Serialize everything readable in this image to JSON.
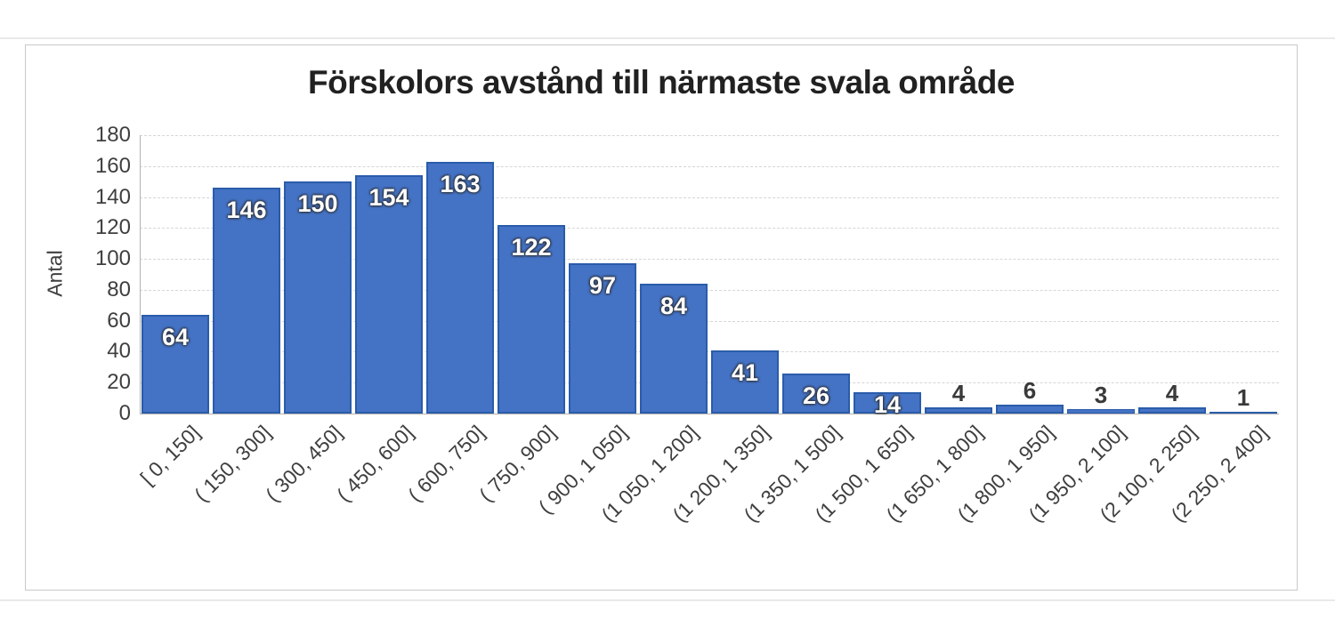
{
  "chart_data": {
    "type": "bar",
    "title": "Förskolors avstånd till närmaste svala område",
    "ylabel": "Antal",
    "xlabel": "",
    "ylim": [
      0,
      180
    ],
    "yticks": [
      0,
      20,
      40,
      60,
      80,
      100,
      120,
      140,
      160,
      180
    ],
    "grid": true,
    "legend_position": "none",
    "categories": [
      "[ 0, 150]",
      "( 150, 300]",
      "( 300, 450]",
      "( 450, 600]",
      "( 600, 750]",
      "( 750, 900]",
      "( 900, 1 050]",
      "(1 050, 1 200]",
      "(1 200, 1 350]",
      "(1 350, 1 500]",
      "(1 500, 1 650]",
      "(1 650, 1 800]",
      "(1 800, 1 950]",
      "(1 950, 2 100]",
      "(2 100, 2 250]",
      "(2 250, 2 400]"
    ],
    "values": [
      64,
      146,
      150,
      154,
      163,
      122,
      97,
      84,
      41,
      26,
      14,
      4,
      6,
      3,
      4,
      1
    ],
    "colors": {
      "bar_fill": "#4472C4",
      "bar_border": "#2A5CAA",
      "grid_line": "#D6D6D6",
      "axis_line": "#B3B3B3",
      "label_inside": "#FFFFFF",
      "label_outside": "#3A3A3A",
      "tick_text": "#3F3F3F",
      "title_text": "#212121",
      "frame_border": "#C9C9C9"
    }
  }
}
